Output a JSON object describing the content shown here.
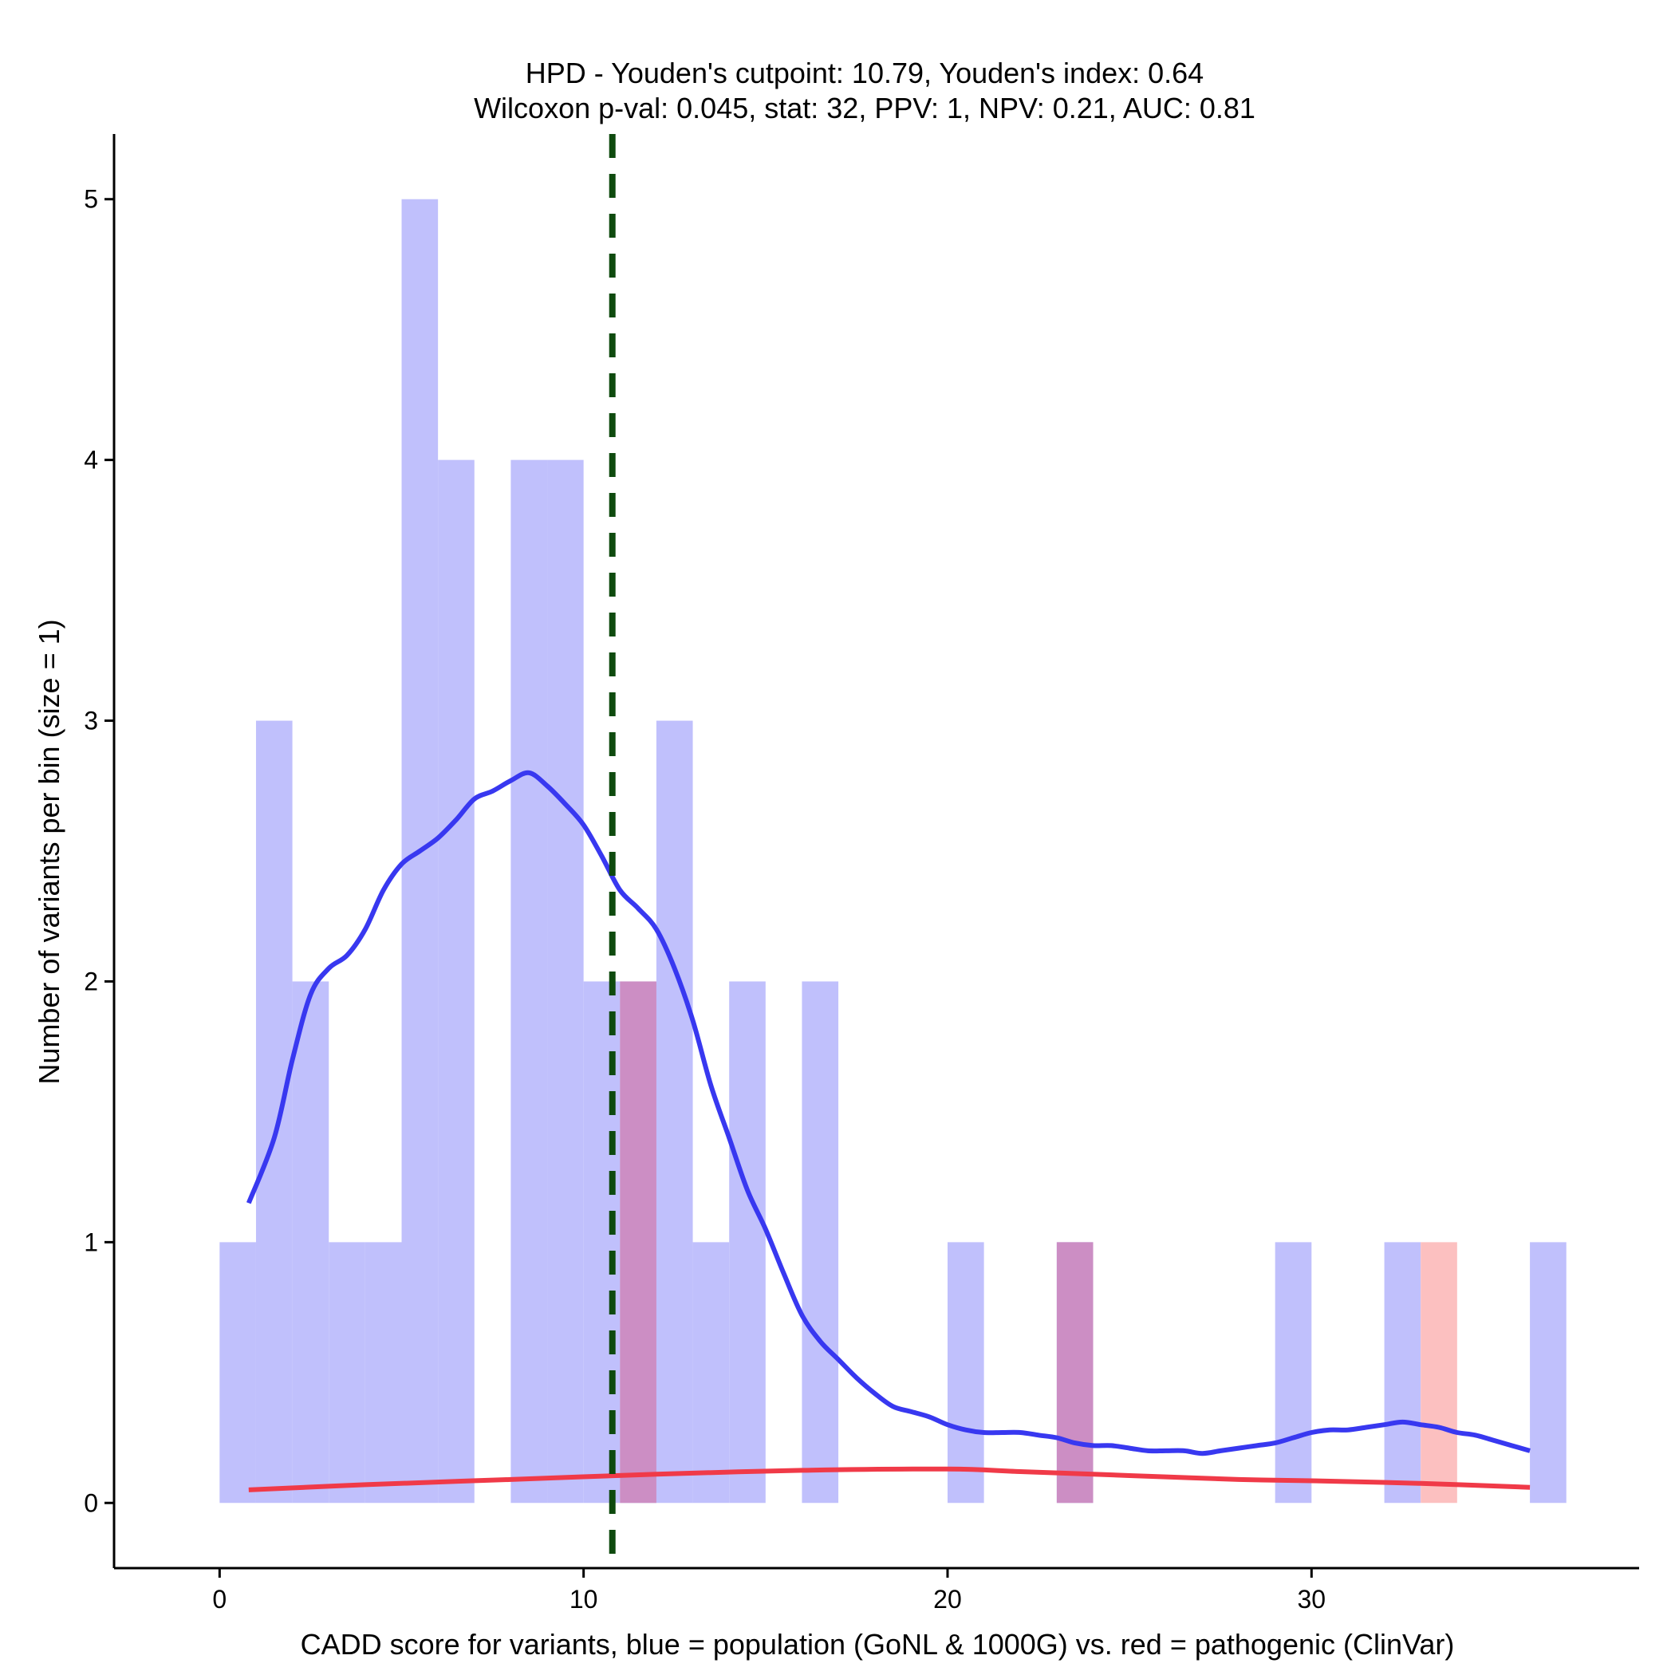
{
  "chart_data": {
    "type": "bar",
    "title": "HPD - Youden's cutpoint: 10.79, Youden's index: 0.64",
    "subtitle": "Wilcoxon p-val: 0.045, stat: 32, PPV: 1, NPV: 0.21, AUC: 0.81",
    "xlabel": "CADD score for variants, blue = population (GoNL & 1000G) vs. red = pathogenic (ClinVar)",
    "ylabel": "Number of variants per bin (size = 1)",
    "xlim": [
      -2.9,
      39
    ],
    "ylim": [
      -0.25,
      5.25
    ],
    "x_ticks": [
      0,
      10,
      20,
      30
    ],
    "y_ticks": [
      0,
      1,
      2,
      3,
      4,
      5
    ],
    "bin_width": 1,
    "cutpoint": 10.79,
    "colors": {
      "population_bar": "#c0c0fc",
      "pathogenic_bar": "#fcc0c0",
      "overlap_bar": "#cc8ec4",
      "population_line": "#3838f0",
      "pathogenic_line": "#f03a48",
      "cutpoint_line": "#0e4a0e"
    },
    "series": [
      {
        "name": "population (GoNL & 1000G)",
        "bins": [
          {
            "start": 0,
            "count": 1
          },
          {
            "start": 1,
            "count": 3
          },
          {
            "start": 2,
            "count": 2
          },
          {
            "start": 3,
            "count": 1
          },
          {
            "start": 4,
            "count": 1
          },
          {
            "start": 5,
            "count": 5
          },
          {
            "start": 6,
            "count": 4
          },
          {
            "start": 8,
            "count": 4
          },
          {
            "start": 9,
            "count": 4
          },
          {
            "start": 10,
            "count": 2
          },
          {
            "start": 11,
            "count": 2
          },
          {
            "start": 12,
            "count": 3
          },
          {
            "start": 13,
            "count": 1
          },
          {
            "start": 14,
            "count": 2
          },
          {
            "start": 16,
            "count": 2
          },
          {
            "start": 20,
            "count": 1
          },
          {
            "start": 23,
            "count": 1
          },
          {
            "start": 29,
            "count": 1
          },
          {
            "start": 32,
            "count": 1
          },
          {
            "start": 36,
            "count": 1
          }
        ]
      },
      {
        "name": "pathogenic (ClinVar)",
        "bins": [
          {
            "start": 11,
            "count": 2
          },
          {
            "start": 23,
            "count": 1
          },
          {
            "start": 33,
            "count": 1
          }
        ]
      }
    ],
    "density_lines": [
      {
        "name": "population density",
        "x": [
          0.8,
          1.5,
          2.0,
          2.5,
          3.0,
          3.5,
          4.0,
          4.5,
          5.0,
          5.5,
          6.0,
          6.5,
          7.0,
          7.5,
          8.0,
          8.5,
          9.0,
          9.5,
          10.0,
          10.5,
          11.0,
          11.5,
          12.0,
          12.5,
          13.0,
          13.5,
          14.0,
          14.5,
          15.0,
          15.5,
          16.0,
          16.5,
          17.0,
          17.5,
          18.0,
          18.5,
          19.0,
          19.5,
          20.0,
          20.5,
          21.0,
          21.5,
          22.0,
          22.5,
          23.0,
          23.5,
          24.0,
          24.5,
          25.0,
          25.5,
          26.0,
          26.5,
          27.0,
          27.5,
          28.0,
          28.5,
          29.0,
          29.5,
          30.0,
          30.5,
          31.0,
          31.5,
          32.0,
          32.5,
          33.0,
          33.5,
          34.0,
          34.5,
          35.0,
          35.5,
          36.0
        ],
        "y": [
          1.15,
          1.4,
          1.7,
          1.95,
          2.05,
          2.1,
          2.2,
          2.35,
          2.45,
          2.5,
          2.55,
          2.62,
          2.7,
          2.73,
          2.77,
          2.8,
          2.75,
          2.68,
          2.6,
          2.48,
          2.35,
          2.28,
          2.2,
          2.05,
          1.85,
          1.6,
          1.4,
          1.2,
          1.05,
          0.88,
          0.72,
          0.62,
          0.55,
          0.48,
          0.42,
          0.37,
          0.35,
          0.33,
          0.3,
          0.28,
          0.27,
          0.27,
          0.27,
          0.26,
          0.25,
          0.23,
          0.22,
          0.22,
          0.21,
          0.2,
          0.2,
          0.2,
          0.19,
          0.2,
          0.21,
          0.22,
          0.23,
          0.25,
          0.27,
          0.28,
          0.28,
          0.29,
          0.3,
          0.31,
          0.3,
          0.29,
          0.27,
          0.26,
          0.24,
          0.22,
          0.2
        ]
      },
      {
        "name": "pathogenic density",
        "x": [
          0.8,
          4,
          8,
          12,
          16,
          20,
          22,
          24,
          26,
          28,
          30,
          33,
          36
        ],
        "y": [
          0.05,
          0.07,
          0.09,
          0.11,
          0.125,
          0.13,
          0.12,
          0.11,
          0.1,
          0.09,
          0.085,
          0.075,
          0.06
        ]
      }
    ]
  }
}
